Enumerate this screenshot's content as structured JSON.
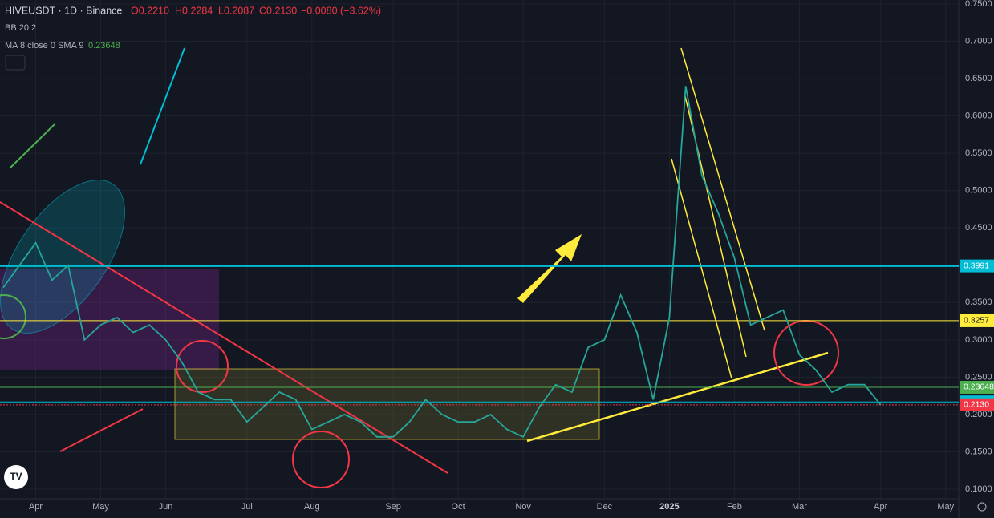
{
  "chart_data": {
    "type": "line",
    "header": {
      "symbol": "HIVEUSDT · 1D · Binance",
      "open": "O0.2210",
      "high": "H0.2284",
      "low": "L0.2087",
      "close": "C0.2130",
      "change": "−0.0080 (−3.62%)",
      "indicator_bb": "BB 20 2",
      "indicator_ma": "MA 8 close 0 SMA 9",
      "ma_value": "0.23648"
    },
    "categories": [
      null,
      null,
      "Apr",
      null,
      null,
      null,
      "May",
      null,
      null,
      null,
      "Jun",
      null,
      null,
      null,
      null,
      "Jul",
      null,
      null,
      null,
      "Aug",
      null,
      null,
      null,
      null,
      "Sep",
      null,
      null,
      null,
      "Oct",
      null,
      null,
      null,
      "Nov",
      null,
      null,
      null,
      null,
      "Dec",
      null,
      null,
      null,
      "2025",
      null,
      null,
      null,
      "Feb",
      null,
      null,
      null,
      "Mar",
      null,
      null,
      null,
      null,
      "Apr",
      null,
      null,
      null,
      "May"
    ],
    "series": [
      {
        "name": "HIVEUSDT",
        "color": "#26a69a",
        "values": [
          0.37,
          0.4,
          0.43,
          0.38,
          0.4,
          0.3,
          0.32,
          0.33,
          0.31,
          0.32,
          0.3,
          0.27,
          0.23,
          0.22,
          0.22,
          0.19,
          0.21,
          0.23,
          0.22,
          0.18,
          0.19,
          0.2,
          0.19,
          0.17,
          0.17,
          0.19,
          0.22,
          0.2,
          0.19,
          0.19,
          0.2,
          0.18,
          0.17,
          0.21,
          0.24,
          0.23,
          0.29,
          0.3,
          0.36,
          0.31,
          0.22,
          0.33,
          0.64,
          0.52,
          0.47,
          0.41,
          0.32,
          0.33,
          0.34,
          0.28,
          0.26,
          0.23,
          0.24,
          0.24,
          0.213,
          null,
          null,
          null,
          null
        ]
      }
    ],
    "ylim": [
      0.1,
      0.75
    ],
    "yticks": [
      {
        "value": 0.1,
        "label": "0.1000"
      },
      {
        "value": 0.15,
        "label": "0.1500"
      },
      {
        "value": 0.2,
        "label": "0.2000"
      },
      {
        "value": 0.25,
        "label": "0.2500"
      },
      {
        "value": 0.3,
        "label": "0.3000"
      },
      {
        "value": 0.35,
        "label": "0.3500"
      },
      {
        "value": 0.4,
        "label": "0.4000"
      },
      {
        "value": 0.45,
        "label": "0.4500"
      },
      {
        "value": 0.5,
        "label": "0.5000"
      },
      {
        "value": 0.55,
        "label": "0.5500"
      },
      {
        "value": 0.6,
        "label": "0.6000"
      },
      {
        "value": 0.65,
        "label": "0.6500"
      },
      {
        "value": 0.7,
        "label": "0.7000"
      },
      {
        "value": 0.75,
        "label": "0.7500"
      }
    ],
    "grid": true,
    "levels": [
      {
        "value": 0.3991,
        "color": "#00bcd4"
      },
      {
        "value": 0.3257,
        "color": "#ffeb3b"
      },
      {
        "value": 0.23648,
        "color": "#4caf50"
      },
      {
        "value": 0.2169,
        "color": "#00bcd4"
      },
      {
        "value": 0.213,
        "label": "0.2130",
        "color": "#f23645"
      }
    ]
  }
}
